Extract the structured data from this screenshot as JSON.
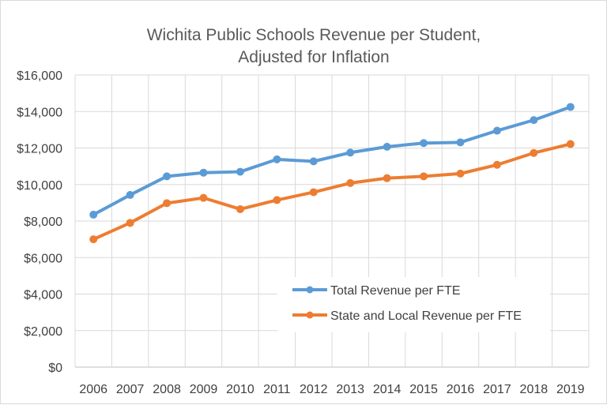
{
  "chart_data": {
    "type": "line",
    "title_lines": [
      "Wichita Public Schools Revenue per Student,",
      "Adjusted for Inflation"
    ],
    "categories": [
      "2006",
      "2007",
      "2008",
      "2009",
      "2010",
      "2011",
      "2012",
      "2013",
      "2014",
      "2015",
      "2016",
      "2017",
      "2018",
      "2019"
    ],
    "ylim": [
      0,
      16000
    ],
    "y_ticks": [
      {
        "value": 0,
        "label": "$0"
      },
      {
        "value": 2000,
        "label": "$2,000"
      },
      {
        "value": 4000,
        "label": "$4,000"
      },
      {
        "value": 6000,
        "label": "$6,000"
      },
      {
        "value": 8000,
        "label": "$8,000"
      },
      {
        "value": 10000,
        "label": "$10,000"
      },
      {
        "value": 12000,
        "label": "$12,000"
      },
      {
        "value": 14000,
        "label": "$14,000"
      },
      {
        "value": 16000,
        "label": "$16,000"
      }
    ],
    "grid": true,
    "legend_position": "inside-bottom-right",
    "series": [
      {
        "name": "Total Revenue per FTE",
        "color": "#5b9bd5",
        "values": [
          8350,
          9430,
          10450,
          10650,
          10700,
          11380,
          11270,
          11750,
          12070,
          12270,
          12310,
          12950,
          13530,
          14250
        ]
      },
      {
        "name": "State and Local Revenue per FTE",
        "color": "#ed7d31",
        "values": [
          7000,
          7900,
          8980,
          9270,
          8650,
          9150,
          9580,
          10080,
          10350,
          10450,
          10600,
          11080,
          11730,
          12220
        ]
      }
    ]
  }
}
